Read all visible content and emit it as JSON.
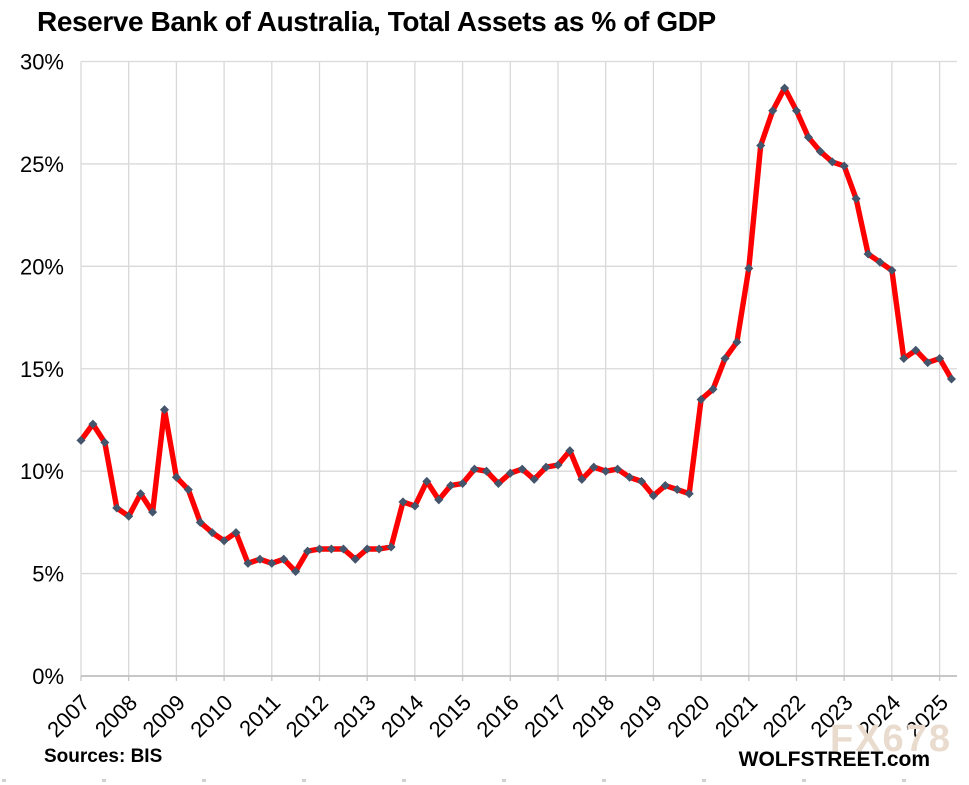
{
  "title": "Reserve Bank of Australia, Total Assets as % of GDP",
  "footer": {
    "sources": "Sources: BIS",
    "site": "WOLFSTREET.com",
    "watermark": "FX678"
  },
  "chart_data": {
    "type": "line",
    "title": "Reserve Bank of Australia, Total Assets as % of GDP",
    "x_start": "2007 Q1",
    "x_frequency": "quarterly",
    "x_tick_labels": [
      "2007",
      "2008",
      "2009",
      "2010",
      "2011",
      "2012",
      "2013",
      "2014",
      "2015",
      "2016",
      "2017",
      "2018",
      "2019",
      "2020",
      "2021",
      "2022",
      "2023",
      "2024",
      "2025"
    ],
    "y_tick_labels": [
      "0%",
      "5%",
      "10%",
      "15%",
      "20%",
      "25%",
      "30%"
    ],
    "ylim": [
      0,
      30
    ],
    "grid": true,
    "legend": "none",
    "line_color": "#FF0000",
    "marker_color": "#44546A",
    "gridline_color": "#D9D9D9",
    "axis_color": "#BFBFBF",
    "series": [
      {
        "name": "RBA total assets as % of GDP",
        "values": [
          11.5,
          12.3,
          11.4,
          8.2,
          7.8,
          8.9,
          8.0,
          13.0,
          9.7,
          9.1,
          7.5,
          7.0,
          6.6,
          7.0,
          5.5,
          5.7,
          5.5,
          5.7,
          5.1,
          6.1,
          6.2,
          6.2,
          6.2,
          5.7,
          6.2,
          6.2,
          6.3,
          8.5,
          8.3,
          9.5,
          8.6,
          9.3,
          9.4,
          10.1,
          10.0,
          9.4,
          9.9,
          10.1,
          9.6,
          10.2,
          10.3,
          11.0,
          9.6,
          10.2,
          10.0,
          10.1,
          9.7,
          9.5,
          8.8,
          9.3,
          9.1,
          8.9,
          13.5,
          14.0,
          15.5,
          16.3,
          19.9,
          25.9,
          27.6,
          28.7,
          27.6,
          26.3,
          25.6,
          25.1,
          24.9,
          23.3,
          20.6,
          20.2,
          19.8,
          15.5,
          15.9,
          15.3,
          15.5,
          14.5
        ]
      }
    ]
  }
}
